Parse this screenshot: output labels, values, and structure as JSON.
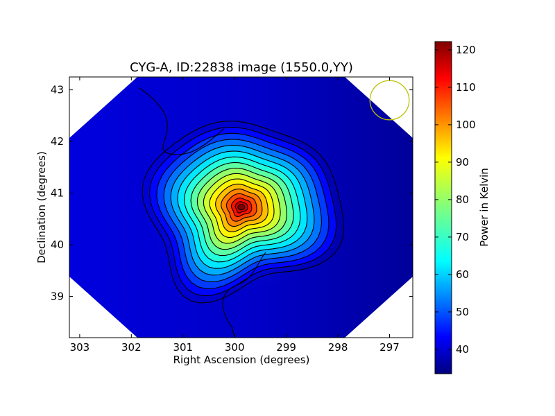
{
  "chart_data": {
    "type": "heatmap",
    "title": "CYG-A, ID:22838 image (1550.0,YY)",
    "xlabel": "Right Ascension (degrees)",
    "ylabel": "Declination (degrees)",
    "xlim": [
      303.2,
      296.55
    ],
    "ylim": [
      38.2,
      43.25
    ],
    "x_ticks": [
      "303",
      "302",
      "301",
      "300",
      "299",
      "298",
      "297"
    ],
    "x_tick_values": [
      303,
      302,
      301,
      300,
      299,
      298,
      297
    ],
    "y_ticks": [
      "39",
      "40",
      "41",
      "42",
      "43"
    ],
    "y_tick_values": [
      39,
      40,
      41,
      42,
      43
    ],
    "peak": {
      "ra": 299.87,
      "dec": 40.73,
      "value": 121
    },
    "background_value": 38,
    "contour_levels": [
      40,
      45,
      50,
      55,
      60,
      65,
      70,
      75,
      80,
      85,
      90,
      95,
      100,
      105,
      110,
      115
    ],
    "beam_circle": {
      "ra": 297.0,
      "dec": 42.8,
      "radius_deg": 0.38,
      "color": "#bfbf00"
    },
    "colorbar": {
      "label": "Power in Kelvin",
      "min": 33.5,
      "max": 122.2,
      "ticks": [
        "40",
        "50",
        "60",
        "70",
        "80",
        "90",
        "100",
        "110",
        "120"
      ],
      "tick_values": [
        40,
        50,
        60,
        70,
        80,
        90,
        100,
        110,
        120
      ],
      "colormap": "jet"
    },
    "grid": false,
    "legend": "none"
  }
}
